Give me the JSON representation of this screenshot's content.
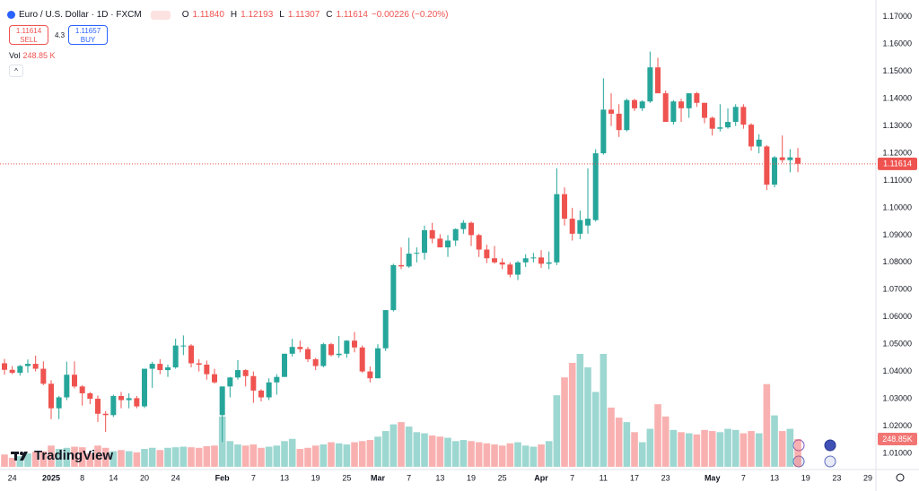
{
  "header": {
    "symbol": "Euro / U.S. Dollar · 1D · FXCM",
    "ohlc": [
      {
        "label": "O",
        "value": "1.11840"
      },
      {
        "label": "H",
        "value": "1.12193"
      },
      {
        "label": "L",
        "value": "1.11307"
      },
      {
        "label": "C",
        "value": "1.11614"
      }
    ],
    "change": "−0.00226 (−0.20%)",
    "sell": {
      "price": "1.11614",
      "label": "SELL"
    },
    "spread": "4.3",
    "buy": {
      "price": "1.11657",
      "label": "BUY"
    },
    "volume": {
      "label": "Vol",
      "value": "248.85 K"
    }
  },
  "brand": "TradingView",
  "chart_data": {
    "type": "candlestick",
    "categories": [
      null,
      "24",
      null,
      null,
      null,
      null,
      "2025",
      null,
      null,
      null,
      "8",
      null,
      null,
      null,
      "14",
      null,
      null,
      null,
      "20",
      null,
      null,
      null,
      "24",
      null,
      null,
      null,
      null,
      null,
      "Feb",
      null,
      null,
      null,
      "7",
      null,
      null,
      null,
      "13",
      null,
      null,
      null,
      "19",
      null,
      null,
      null,
      "25",
      null,
      null,
      null,
      "Mar",
      null,
      null,
      null,
      "7",
      null,
      null,
      null,
      "13",
      null,
      null,
      null,
      "19",
      null,
      null,
      null,
      "25",
      null,
      null,
      null,
      null,
      "Apr",
      null,
      null,
      null,
      "7",
      null,
      null,
      null,
      "11",
      null,
      null,
      null,
      "17",
      null,
      null,
      null,
      "23",
      null,
      null,
      null,
      null,
      null,
      "May",
      null,
      null,
      null,
      "7",
      null,
      null,
      null,
      "13",
      null,
      null,
      null,
      "19",
      null,
      null,
      null,
      "23",
      null,
      null,
      null,
      "29"
    ],
    "open": [
      1.043,
      1.0406,
      1.0395,
      1.042,
      1.0428,
      1.041,
      1.0355,
      1.0265,
      1.0305,
      1.0388,
      1.0345,
      1.032,
      1.03,
      1.0245,
      1.024,
      1.031,
      1.0295,
      1.0302,
      1.0272,
      1.041,
      1.0428,
      1.0405,
      1.0415,
      1.0495,
      1.0495,
      1.043,
      1.0425,
      1.039,
      1.024,
      1.0345,
      1.0378,
      1.0405,
      1.0383,
      1.033,
      1.0305,
      1.036,
      1.038,
      1.0465,
      1.049,
      1.0482,
      1.0445,
      1.042,
      1.05,
      1.046,
      1.0465,
      1.0513,
      1.0488,
      1.04,
      1.0375,
      1.0485,
      1.0625,
      1.079,
      1.0785,
      1.0832,
      1.0835,
      1.0918,
      1.0887,
      1.0855,
      1.088,
      1.0922,
      1.0945,
      1.09,
      1.0847,
      1.0815,
      1.08,
      1.0792,
      1.0755,
      1.08,
      1.0815,
      1.0818,
      1.0795,
      1.08,
      1.105,
      1.096,
      1.0905,
      1.0935,
      1.0955,
      1.12,
      1.136,
      1.1345,
      1.1285,
      1.1395,
      1.1365,
      1.139,
      1.1515,
      1.142,
      1.1315,
      1.139,
      1.1365,
      1.142,
      1.1385,
      1.133,
      1.129,
      1.1295,
      1.1315,
      1.137,
      1.1305,
      1.1225,
      1.1225,
      1.1085,
      1.1185,
      1.1175,
      1.1184,
      null,
      null,
      null,
      null,
      null,
      null,
      null,
      null,
      null
    ],
    "high": [
      1.0446,
      1.042,
      1.0424,
      1.0444,
      1.0458,
      1.0437,
      1.0368,
      1.031,
      1.0436,
      1.0437,
      1.035,
      1.0325,
      1.0312,
      1.0255,
      1.0315,
      1.0325,
      1.032,
      1.031,
      1.041,
      1.0435,
      1.0445,
      1.0425,
      1.052,
      1.0532,
      1.05,
      1.0445,
      1.044,
      1.041,
      1.0345,
      1.038,
      1.0442,
      1.0408,
      1.04,
      1.0335,
      1.0375,
      1.039,
      1.0465,
      1.052,
      1.0513,
      1.049,
      1.045,
      1.0505,
      1.0505,
      1.053,
      1.0515,
      1.0545,
      1.0495,
      1.0418,
      1.05,
      1.0625,
      1.0795,
      1.0855,
      1.089,
      1.0855,
      1.0935,
      1.0945,
      1.0903,
      1.09,
      1.0925,
      1.0955,
      1.095,
      1.0905,
      1.0865,
      1.086,
      1.0815,
      1.08,
      1.0805,
      1.083,
      1.0835,
      1.0845,
      1.084,
      1.1145,
      1.1075,
      1.1,
      1.099,
      1.1145,
      1.1215,
      1.1475,
      1.142,
      1.138,
      1.14,
      1.14,
      1.1395,
      1.1573,
      1.155,
      1.143,
      1.1395,
      1.14,
      1.142,
      1.1425,
      1.1385,
      1.1335,
      1.138,
      1.1365,
      1.138,
      1.138,
      1.131,
      1.127,
      1.123,
      1.119,
      1.1265,
      1.1215,
      1.12193,
      null,
      null,
      null,
      null,
      null,
      null,
      null,
      null,
      null
    ],
    "low": [
      1.0388,
      1.039,
      1.0385,
      1.0395,
      1.04,
      1.035,
      1.0225,
      1.0225,
      1.0295,
      1.0338,
      1.0275,
      1.028,
      1.0215,
      1.0178,
      1.0233,
      1.0265,
      1.0265,
      1.0265,
      1.0266,
      1.034,
      1.039,
      1.038,
      1.041,
      1.046,
      1.0415,
      1.04,
      1.037,
      1.0355,
      1.0141,
      1.0305,
      1.037,
      1.0345,
      1.0285,
      1.029,
      1.0295,
      1.0315,
      1.038,
      1.0455,
      1.047,
      1.0435,
      1.0405,
      1.0415,
      1.0455,
      1.045,
      1.045,
      1.047,
      1.0395,
      1.036,
      1.0375,
      1.0475,
      1.062,
      1.0775,
      1.078,
      1.08,
      1.081,
      1.087,
      1.0855,
      1.082,
      1.086,
      1.0905,
      1.086,
      1.082,
      1.0797,
      1.0795,
      1.0775,
      1.0745,
      1.0735,
      1.0783,
      1.08,
      1.078,
      1.0775,
      1.079,
      1.0935,
      1.088,
      1.0885,
      1.0905,
      1.095,
      1.1195,
      1.13,
      1.126,
      1.128,
      1.1355,
      1.1355,
      1.1385,
      1.142,
      1.132,
      1.1305,
      1.1315,
      1.133,
      1.137,
      1.131,
      1.1265,
      1.128,
      1.129,
      1.13,
      1.129,
      1.121,
      1.12,
      1.1065,
      1.1075,
      1.1165,
      1.113,
      1.11307,
      null,
      null,
      null,
      null,
      null,
      null,
      null,
      null,
      null
    ],
    "close": [
      1.0406,
      1.0395,
      1.042,
      1.0428,
      1.041,
      1.0355,
      1.0265,
      1.0305,
      1.0388,
      1.0345,
      1.032,
      1.03,
      1.0245,
      1.024,
      1.031,
      1.0295,
      1.0302,
      1.0272,
      1.041,
      1.0428,
      1.0405,
      1.0415,
      1.0495,
      1.0495,
      1.043,
      1.0425,
      1.039,
      1.036,
      1.0345,
      1.0378,
      1.0405,
      1.0383,
      1.033,
      1.0305,
      1.036,
      1.038,
      1.0465,
      1.049,
      1.0482,
      1.0445,
      1.042,
      1.05,
      1.046,
      1.0465,
      1.0513,
      1.0488,
      1.04,
      1.0375,
      1.0485,
      1.0625,
      1.079,
      1.0785,
      1.0832,
      1.0835,
      1.0918,
      1.0887,
      1.0855,
      1.088,
      1.0922,
      1.0945,
      1.09,
      1.0847,
      1.0815,
      1.08,
      1.0792,
      1.0755,
      1.08,
      1.0815,
      1.0818,
      1.0795,
      1.08,
      1.105,
      1.096,
      1.0905,
      1.0955,
      1.096,
      1.12,
      1.136,
      1.1345,
      1.1285,
      1.1395,
      1.1365,
      1.139,
      1.1515,
      1.142,
      1.1315,
      1.139,
      1.1365,
      1.142,
      1.1385,
      1.133,
      1.129,
      1.1295,
      1.1315,
      1.137,
      1.1305,
      1.1225,
      1.125,
      1.1085,
      1.1185,
      1.1175,
      1.1185,
      1.11614,
      null,
      null,
      null,
      null,
      null,
      null,
      null,
      null,
      null
    ],
    "volume": [
      110,
      80,
      95,
      120,
      135,
      140,
      190,
      160,
      170,
      180,
      175,
      120,
      190,
      170,
      140,
      150,
      140,
      130,
      160,
      170,
      150,
      170,
      175,
      180,
      175,
      170,
      185,
      190,
      450,
      230,
      200,
      190,
      200,
      170,
      180,
      190,
      230,
      250,
      160,
      170,
      190,
      200,
      220,
      210,
      200,
      220,
      230,
      240,
      270,
      320,
      380,
      400,
      360,
      310,
      300,
      280,
      270,
      260,
      230,
      240,
      230,
      220,
      210,
      200,
      190,
      210,
      220,
      190,
      180,
      200,
      230,
      640,
      800,
      930,
      1010,
      890,
      670,
      1010,
      530,
      440,
      400,
      310,
      220,
      340,
      560,
      450,
      330,
      310,
      300,
      290,
      330,
      320,
      310,
      340,
      330,
      300,
      320,
      300,
      740,
      460,
      320,
      340,
      248.85,
      null,
      null,
      null,
      null,
      null,
      null,
      null,
      null,
      null
    ],
    "volume_label": "248.85K",
    "up_color": "#26a69a",
    "down_color": "#ef5350",
    "ylim": [
      0.9988,
      1.1762
    ],
    "yticks": [
      {
        "value": 1.17,
        "label": "1.17000"
      },
      {
        "value": 1.16,
        "label": "1.16000"
      },
      {
        "value": 1.15,
        "label": "1.15000"
      },
      {
        "value": 1.14,
        "label": "1.14000"
      },
      {
        "value": 1.13,
        "label": "1.13000"
      },
      {
        "value": 1.12,
        "label": "1.12000"
      },
      {
        "value": 1.11,
        "label": "1.11000"
      },
      {
        "value": 1.1,
        "label": "1.10000"
      },
      {
        "value": 1.09,
        "label": "1.09000"
      },
      {
        "value": 1.08,
        "label": "1.08000"
      },
      {
        "value": 1.07,
        "label": "1.07000"
      },
      {
        "value": 1.06,
        "label": "1.06000"
      },
      {
        "value": 1.05,
        "label": "1.05000"
      },
      {
        "value": 1.04,
        "label": "1.04000"
      },
      {
        "value": 1.03,
        "label": "1.03000"
      },
      {
        "value": 1.02,
        "label": "1.02000"
      },
      {
        "value": 1.01,
        "label": "1.01000"
      }
    ]
  }
}
